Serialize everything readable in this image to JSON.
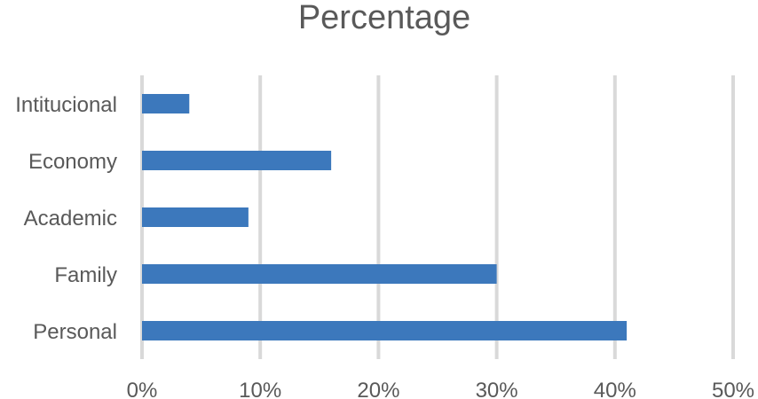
{
  "chart_data": {
    "type": "bar",
    "orientation": "horizontal",
    "title": "Percentage",
    "categories": [
      "Intitucional",
      "Economy",
      "Academic",
      "Family",
      "Personal"
    ],
    "values": [
      4,
      16,
      9,
      30,
      41
    ],
    "value_unit": "%",
    "xlim": [
      0,
      50
    ],
    "xticks": [
      "0%",
      "10%",
      "20%",
      "30%",
      "40%",
      "50%"
    ],
    "xlabel": "",
    "ylabel": "",
    "grid": "vertical",
    "legend": "none",
    "colors": {
      "bar": "#3c78bc",
      "grid": "#d9d9d9",
      "text": "#595959"
    }
  }
}
